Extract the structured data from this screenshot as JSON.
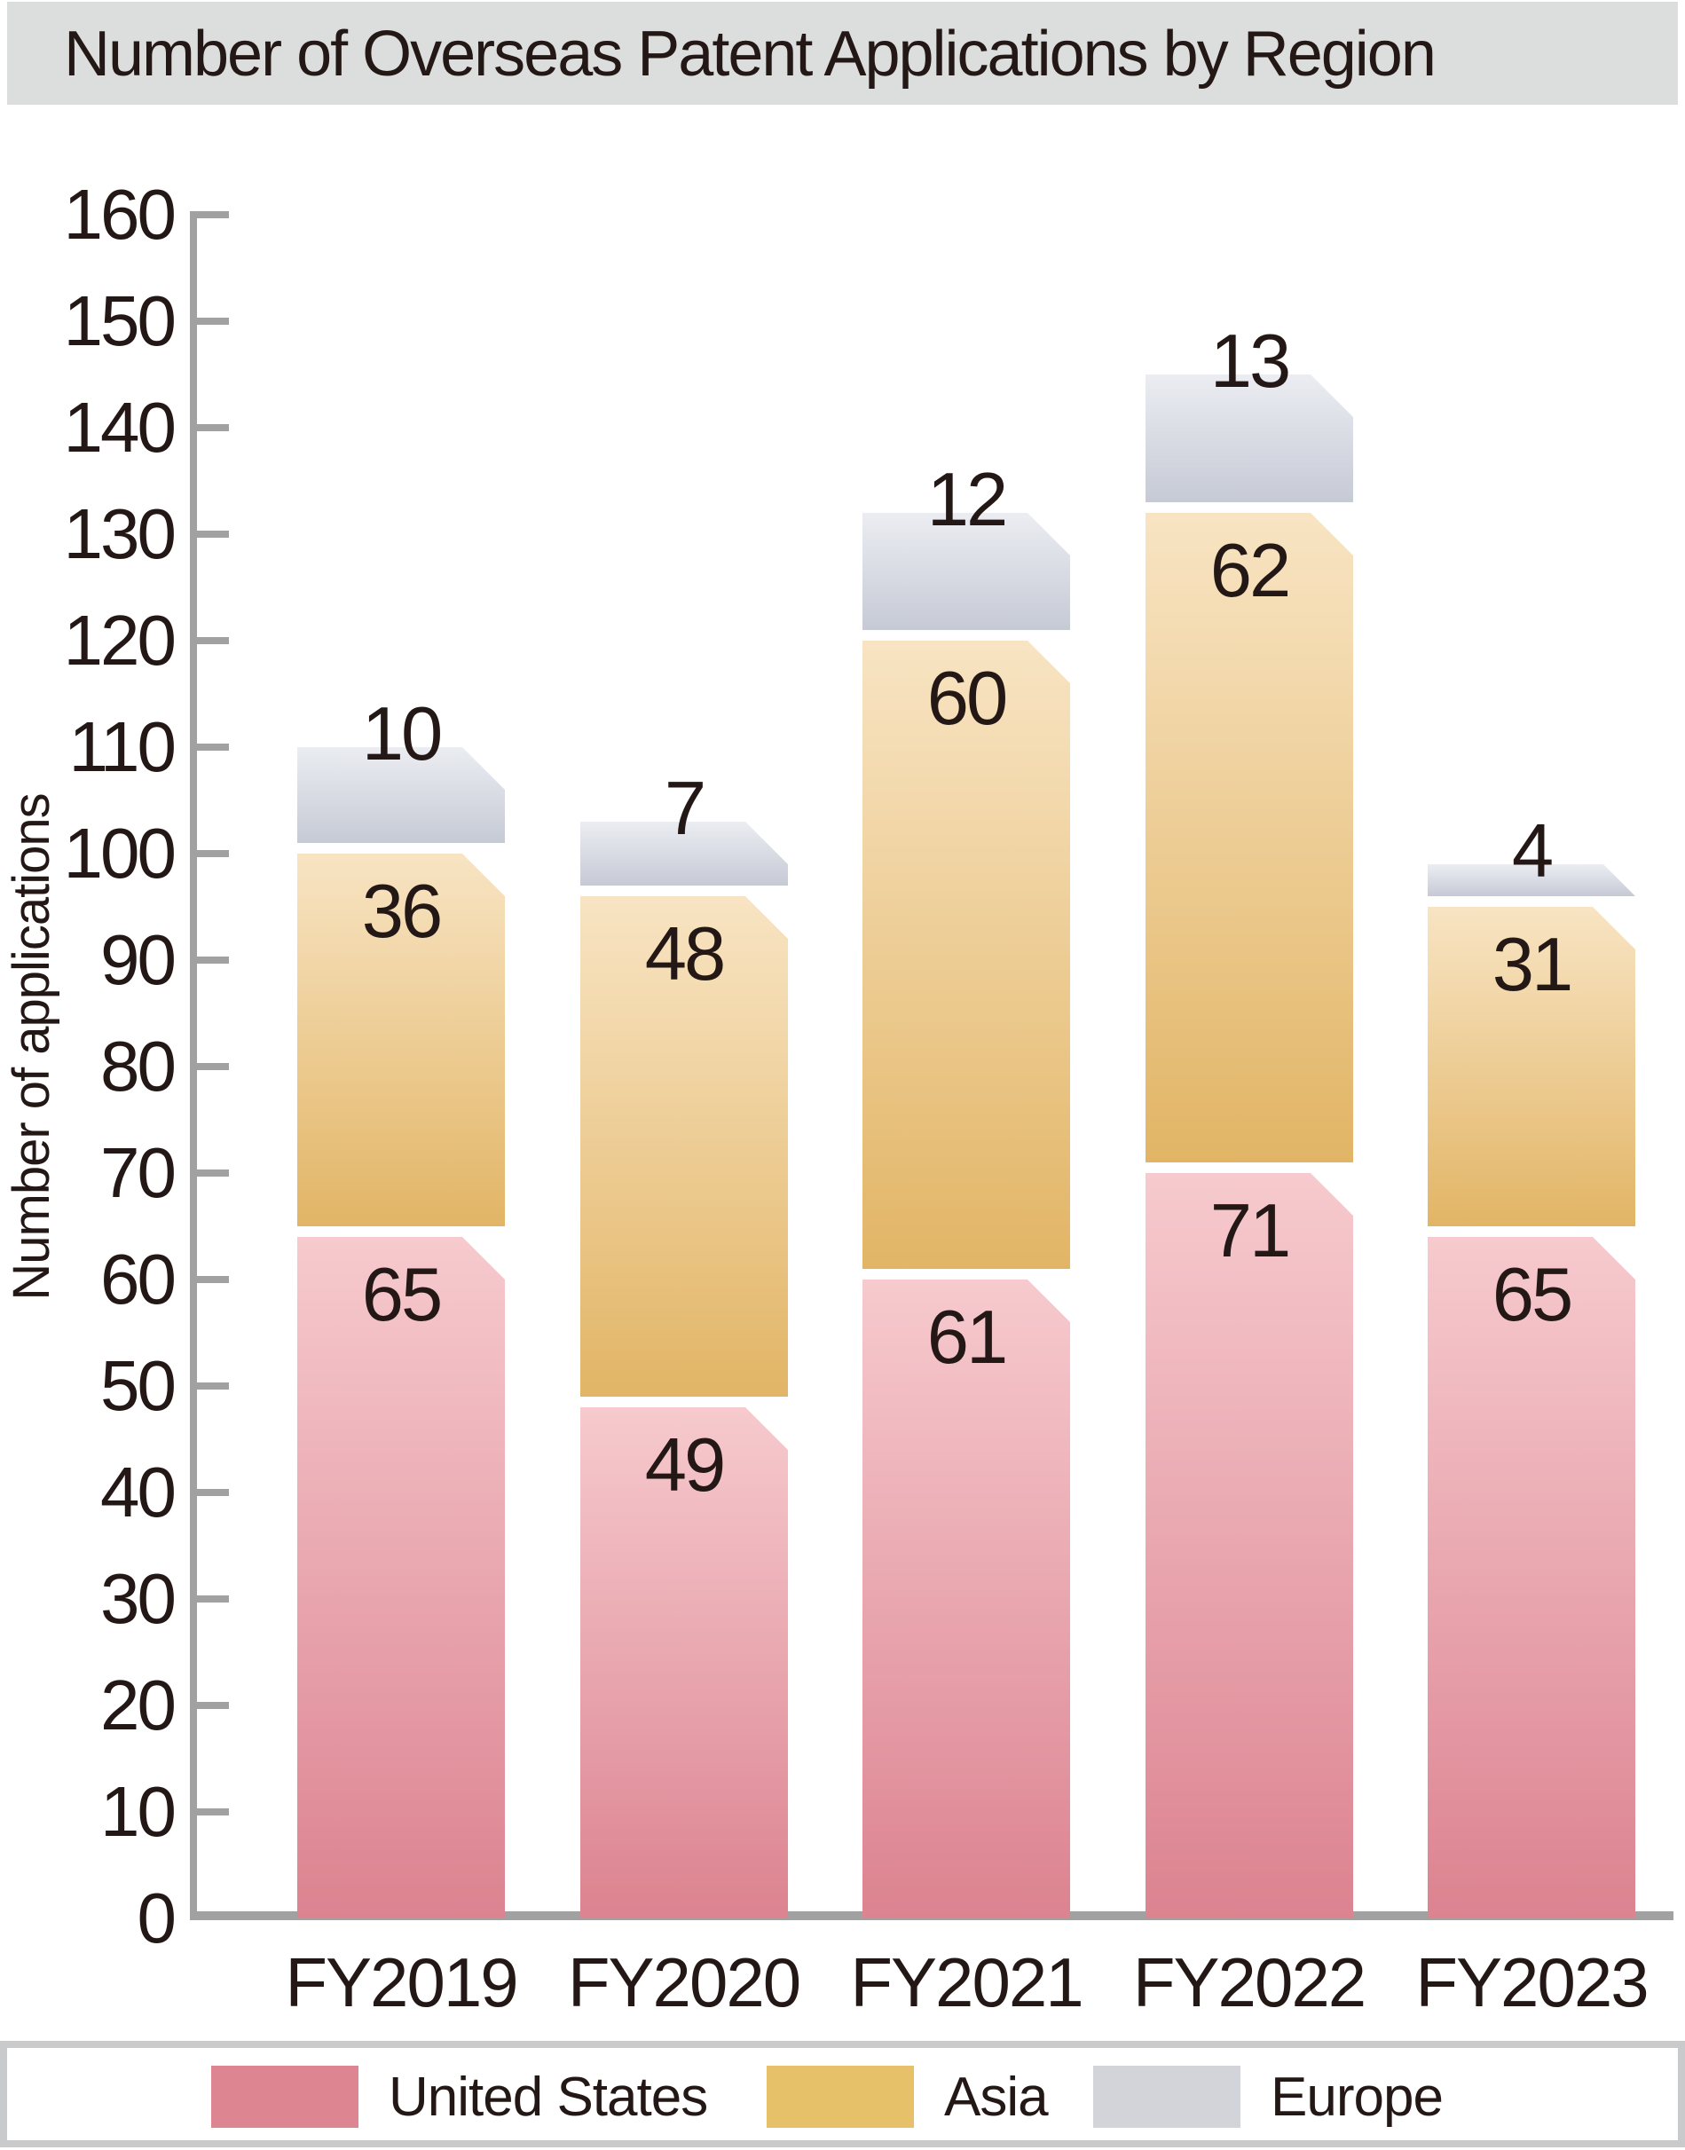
{
  "title": "Number of Overseas Patent Applications by Region",
  "y_axis": {
    "label": "Number of applications",
    "min": 0,
    "max": 160,
    "tick_step": 10
  },
  "legend": [
    {
      "label": "United States",
      "color": "#dd8590"
    },
    {
      "label": "Asia",
      "color": "#e7c06a"
    },
    {
      "label": "Europe",
      "color": "#d3d4da"
    }
  ],
  "chart_data": {
    "type": "bar",
    "stacked": true,
    "title": "Number of Overseas Patent Applications by Region",
    "categories": [
      "FY2019",
      "FY2020",
      "FY2021",
      "FY2022",
      "FY2023"
    ],
    "series": [
      {
        "name": "United States",
        "values": [
          65,
          49,
          61,
          71,
          65
        ],
        "gradient_top": "#f6cace",
        "gradient_bottom": "#dc8390"
      },
      {
        "name": "Asia",
        "values": [
          36,
          48,
          60,
          62,
          31
        ],
        "gradient_top": "#f8e4c3",
        "gradient_bottom": "#e2b566"
      },
      {
        "name": "Europe",
        "values": [
          10,
          7,
          12,
          13,
          4
        ],
        "gradient_top": "#ebedf2",
        "gradient_bottom": "#c6cad5"
      }
    ],
    "totals": [
      111,
      104,
      133,
      146,
      100
    ],
    "xlabel": "",
    "ylabel": "Number of applications",
    "ylim": [
      0,
      160
    ],
    "grid": false,
    "legend_position": "bottom"
  },
  "colors": {
    "title_background": "#dcdddd",
    "text": "#231815",
    "axis": "#a1a1a2",
    "legend_border": "#c9cacb",
    "background": "#ffffff"
  }
}
